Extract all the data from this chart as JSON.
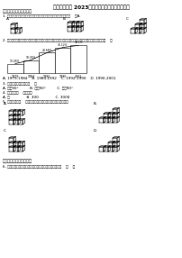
{
  "title": "抚顺市顺城区 2023年数学四下期末调研模拟试题",
  "section1_header": "一、用心思考，细心填。",
  "q1_text": "1. 求截圆、上面、右面看到的形状都是以下正方形组成的图形是（    ）A.",
  "q2_text": "2. 据据人口总量人口发展程度大小濒向递增的比平数据，近期可知，我国递增比平数据增幅较快的时期是（    ）",
  "bar_years": [
    "1979",
    "1984",
    "1992",
    "1990",
    "2001"
  ],
  "bar_values": [
    13.26,
    18.36,
    28.68,
    36.12,
    39.1
  ],
  "bar_labels": [
    "13.26%",
    "18.36%",
    "28.68%",
    "36.12%",
    "39.1%"
  ],
  "q2_opts": "A. 1979-1984    B. 1984-1992    C. 1992-1990    D. 1990-2001",
  "q3_text": "3. 一个角是三角形的较长边上一处（    ）A.",
  "q3_opts": "A. 小于90°              B. 等于90°              C. 大于90°",
  "q4_text": "4. 折面图形（    ）个长。",
  "q4_opts": "A. 四                   B. 300                  C. 3000",
  "q5_text": "5. 下图的物体（    ）从正面看与从左面看到的形状相比视图。",
  "section2_header": "二、仔细思辨，细心解。",
  "q6_text": "6. 在一个长方形中，使更短的边的一边大于另两边之和。    （    ）",
  "bg": "#ffffff",
  "fg": "#000000",
  "cube_size": 5,
  "cube_ox": 2.5,
  "cube_oy": 1.6
}
